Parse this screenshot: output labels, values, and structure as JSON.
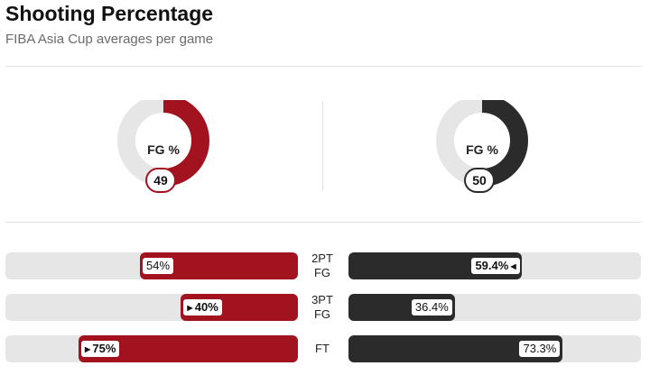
{
  "title": "Shooting Percentage",
  "subtitle": "FIBA Asia Cup averages per game",
  "colors": {
    "team1": "#a2131f",
    "team2": "#2b2b2b",
    "track": "#e6e6e6"
  },
  "chart_data": {
    "type": "bar",
    "donuts": [
      {
        "label": "FG %",
        "value": 49,
        "color": "#a2131f"
      },
      {
        "label": "FG %",
        "value": 50,
        "color": "#2b2b2b"
      }
    ],
    "categories": [
      "2PT FG",
      "3PT FG",
      "FT"
    ],
    "rows": [
      {
        "category": "2PT FG",
        "left": 54,
        "left_label": "54%",
        "right": 59.4,
        "right_label": "59.4%",
        "leader": "right"
      },
      {
        "category": "3PT FG",
        "left": 40,
        "left_label": "40%",
        "right": 36.4,
        "right_label": "36.4%",
        "leader": "left"
      },
      {
        "category": "FT",
        "left": 75,
        "left_label": "75%",
        "right": 73.3,
        "right_label": "73.3%",
        "leader": "left"
      }
    ],
    "xlim": [
      0,
      100
    ]
  }
}
